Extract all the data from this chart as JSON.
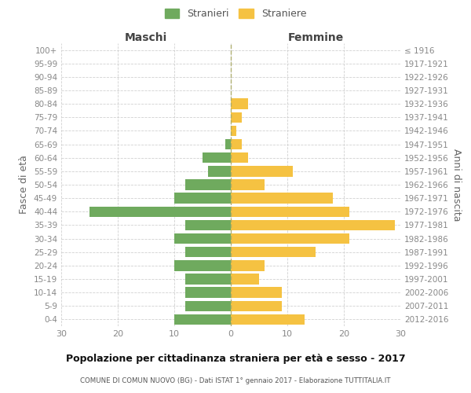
{
  "age_groups": [
    "0-4",
    "5-9",
    "10-14",
    "15-19",
    "20-24",
    "25-29",
    "30-34",
    "35-39",
    "40-44",
    "45-49",
    "50-54",
    "55-59",
    "60-64",
    "65-69",
    "70-74",
    "75-79",
    "80-84",
    "85-89",
    "90-94",
    "95-99",
    "100+"
  ],
  "birth_years": [
    "2012-2016",
    "2007-2011",
    "2002-2006",
    "1997-2001",
    "1992-1996",
    "1987-1991",
    "1982-1986",
    "1977-1981",
    "1972-1976",
    "1967-1971",
    "1962-1966",
    "1957-1961",
    "1952-1956",
    "1947-1951",
    "1942-1946",
    "1937-1941",
    "1932-1936",
    "1927-1931",
    "1922-1926",
    "1917-1921",
    "≤ 1916"
  ],
  "maschi": [
    10,
    8,
    8,
    8,
    10,
    8,
    10,
    8,
    25,
    10,
    8,
    4,
    5,
    1,
    0,
    0,
    0,
    0,
    0,
    0,
    0
  ],
  "femmine": [
    13,
    9,
    9,
    5,
    6,
    15,
    21,
    29,
    21,
    18,
    6,
    11,
    3,
    2,
    1,
    2,
    3,
    0,
    0,
    0,
    0
  ],
  "color_maschi": "#6faa5e",
  "color_femmine": "#f5c242",
  "title": "Popolazione per cittadinanza straniera per età e sesso - 2017",
  "subtitle": "COMUNE DI COMUN NUOVO (BG) - Dati ISTAT 1° gennaio 2017 - Elaborazione TUTTITALIA.IT",
  "label_left": "Maschi",
  "label_right": "Femmine",
  "ylabel_left": "Fasce di età",
  "ylabel_right": "Anni di nascita",
  "xlim": 30,
  "legend_maschi": "Stranieri",
  "legend_femmine": "Straniere",
  "background_color": "#ffffff",
  "grid_color": "#cccccc",
  "tick_color": "#888888"
}
